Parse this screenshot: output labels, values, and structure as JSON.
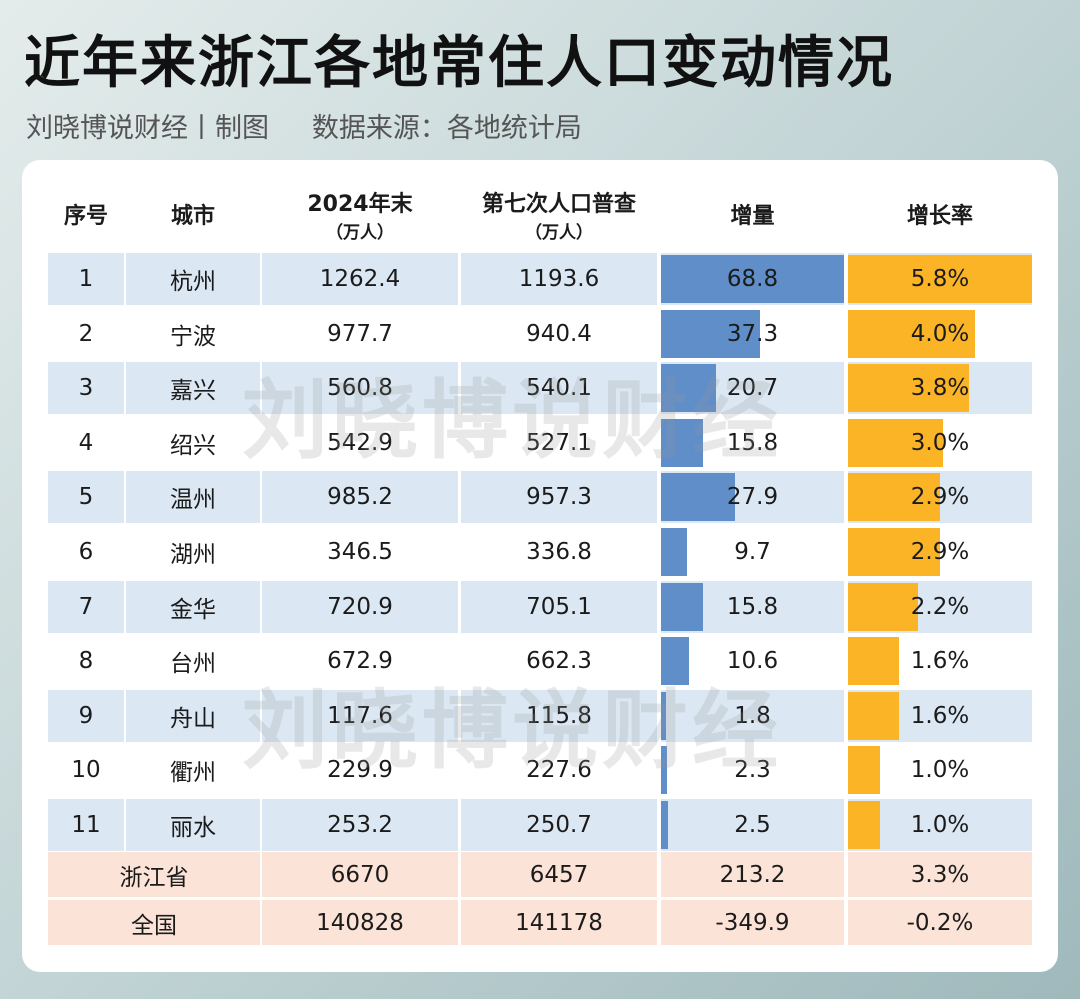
{
  "title": "近年来浙江各地常住人口变动情况",
  "subtitle": "刘晓博说财经丨制图     数据来源：各地统计局",
  "watermark": "刘晓博说财经",
  "colors": {
    "row_alt": "#dbe8f4",
    "total_row": "#fbe3d8",
    "increment_bar": "#5f8ec9",
    "rate_bar": "#fbb426"
  },
  "chart_data": {
    "type": "table",
    "title": "近年来浙江各地常住人口变动情况",
    "headers": [
      {
        "label": "序号"
      },
      {
        "label": "城市"
      },
      {
        "label": "2024年末",
        "unit": "（万人）"
      },
      {
        "label": "第七次人口普查",
        "unit": "（万人）"
      },
      {
        "label": "增量"
      },
      {
        "label": "增长率"
      }
    ],
    "rows": [
      {
        "no": "1",
        "city": "杭州",
        "y2024": "1262.4",
        "census": "1193.6",
        "inc": "68.8",
        "rate": "5.8%",
        "inc_v": 68.8,
        "rate_v": 5.8
      },
      {
        "no": "2",
        "city": "宁波",
        "y2024": "977.7",
        "census": "940.4",
        "inc": "37.3",
        "rate": "4.0%",
        "inc_v": 37.3,
        "rate_v": 4.0
      },
      {
        "no": "3",
        "city": "嘉兴",
        "y2024": "560.8",
        "census": "540.1",
        "inc": "20.7",
        "rate": "3.8%",
        "inc_v": 20.7,
        "rate_v": 3.8
      },
      {
        "no": "4",
        "city": "绍兴",
        "y2024": "542.9",
        "census": "527.1",
        "inc": "15.8",
        "rate": "3.0%",
        "inc_v": 15.8,
        "rate_v": 3.0
      },
      {
        "no": "5",
        "city": "温州",
        "y2024": "985.2",
        "census": "957.3",
        "inc": "27.9",
        "rate": "2.9%",
        "inc_v": 27.9,
        "rate_v": 2.9
      },
      {
        "no": "6",
        "city": "湖州",
        "y2024": "346.5",
        "census": "336.8",
        "inc": "9.7",
        "rate": "2.9%",
        "inc_v": 9.7,
        "rate_v": 2.9
      },
      {
        "no": "7",
        "city": "金华",
        "y2024": "720.9",
        "census": "705.1",
        "inc": "15.8",
        "rate": "2.2%",
        "inc_v": 15.8,
        "rate_v": 2.2
      },
      {
        "no": "8",
        "city": "台州",
        "y2024": "672.9",
        "census": "662.3",
        "inc": "10.6",
        "rate": "1.6%",
        "inc_v": 10.6,
        "rate_v": 1.6
      },
      {
        "no": "9",
        "city": "舟山",
        "y2024": "117.6",
        "census": "115.8",
        "inc": "1.8",
        "rate": "1.6%",
        "inc_v": 1.8,
        "rate_v": 1.6
      },
      {
        "no": "10",
        "city": "衢州",
        "y2024": "229.9",
        "census": "227.6",
        "inc": "2.3",
        "rate": "1.0%",
        "inc_v": 2.3,
        "rate_v": 1.0
      },
      {
        "no": "11",
        "city": "丽水",
        "y2024": "253.2",
        "census": "250.7",
        "inc": "2.5",
        "rate": "1.0%",
        "inc_v": 2.5,
        "rate_v": 1.0
      }
    ],
    "totals": [
      {
        "name": "浙江省",
        "y2024": "6670",
        "census": "6457",
        "inc": "213.2",
        "rate": "3.3%"
      },
      {
        "name": "全国",
        "y2024": "140828",
        "census": "141178",
        "inc": "-349.9",
        "rate": "-0.2%"
      }
    ],
    "inc_max": 68.8,
    "rate_max": 5.8
  }
}
